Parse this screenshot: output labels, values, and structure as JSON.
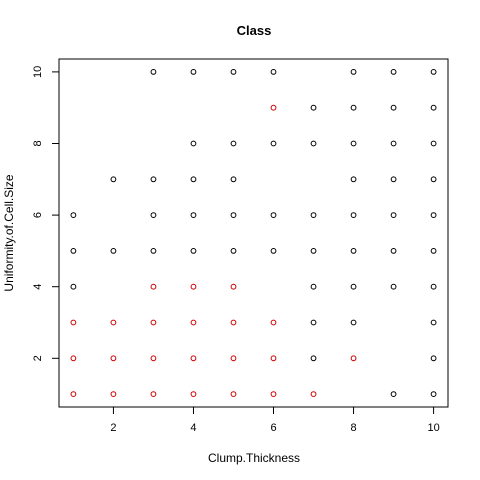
{
  "chart_data": {
    "type": "scatter",
    "title": "Class",
    "xlabel": "Clump.Thickness",
    "ylabel": "Uniformity.of.Cell.Size",
    "xlim": [
      0.64,
      10.36
    ],
    "ylim": [
      0.64,
      10.36
    ],
    "xticks": [
      2,
      4,
      6,
      8,
      10
    ],
    "yticks": [
      2,
      4,
      6,
      8,
      10
    ],
    "xtick_labels": [
      "2",
      "4",
      "6",
      "8",
      "10"
    ],
    "ytick_labels": [
      "2",
      "4",
      "6",
      "8",
      "10"
    ],
    "grid": false,
    "legend": "none",
    "series": [
      {
        "color": "#000000",
        "marker": "open-circle",
        "points": [
          [
            1,
            4
          ],
          [
            1,
            5
          ],
          [
            1,
            6
          ],
          [
            2,
            5
          ],
          [
            2,
            7
          ],
          [
            3,
            5
          ],
          [
            3,
            6
          ],
          [
            3,
            7
          ],
          [
            3,
            10
          ],
          [
            4,
            5
          ],
          [
            4,
            6
          ],
          [
            4,
            7
          ],
          [
            4,
            8
          ],
          [
            4,
            10
          ],
          [
            5,
            5
          ],
          [
            5,
            6
          ],
          [
            5,
            7
          ],
          [
            5,
            8
          ],
          [
            5,
            10
          ],
          [
            6,
            5
          ],
          [
            6,
            6
          ],
          [
            6,
            8
          ],
          [
            6,
            10
          ],
          [
            7,
            2
          ],
          [
            7,
            3
          ],
          [
            7,
            4
          ],
          [
            7,
            5
          ],
          [
            7,
            6
          ],
          [
            7,
            8
          ],
          [
            7,
            9
          ],
          [
            8,
            3
          ],
          [
            8,
            4
          ],
          [
            8,
            5
          ],
          [
            8,
            6
          ],
          [
            8,
            7
          ],
          [
            8,
            8
          ],
          [
            8,
            9
          ],
          [
            8,
            10
          ],
          [
            9,
            1
          ],
          [
            9,
            4
          ],
          [
            9,
            5
          ],
          [
            9,
            6
          ],
          [
            9,
            7
          ],
          [
            9,
            8
          ],
          [
            9,
            9
          ],
          [
            9,
            10
          ],
          [
            10,
            1
          ],
          [
            10,
            2
          ],
          [
            10,
            3
          ],
          [
            10,
            4
          ],
          [
            10,
            5
          ],
          [
            10,
            6
          ],
          [
            10,
            7
          ],
          [
            10,
            8
          ],
          [
            10,
            9
          ],
          [
            10,
            10
          ]
        ]
      },
      {
        "color": "#cc0000",
        "marker": "open-circle",
        "points": [
          [
            1,
            1
          ],
          [
            1,
            2
          ],
          [
            1,
            3
          ],
          [
            2,
            1
          ],
          [
            2,
            2
          ],
          [
            2,
            3
          ],
          [
            3,
            1
          ],
          [
            3,
            2
          ],
          [
            3,
            3
          ],
          [
            3,
            4
          ],
          [
            4,
            1
          ],
          [
            4,
            2
          ],
          [
            4,
            3
          ],
          [
            4,
            4
          ],
          [
            5,
            1
          ],
          [
            5,
            2
          ],
          [
            5,
            3
          ],
          [
            5,
            4
          ],
          [
            6,
            1
          ],
          [
            6,
            2
          ],
          [
            6,
            3
          ],
          [
            6,
            9
          ],
          [
            7,
            1
          ],
          [
            8,
            2
          ]
        ]
      }
    ]
  }
}
